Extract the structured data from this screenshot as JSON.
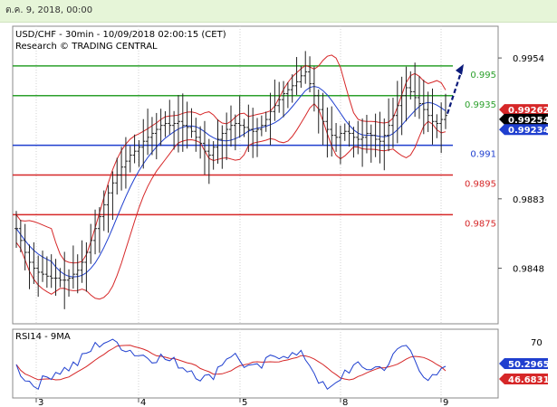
{
  "header": {
    "date_text": "ต.ค. 9, 2018, 00:00"
  },
  "chart_data": [
    {
      "type": "candlestick",
      "title": "USD/CHF - 30min - 10/09/2018 02:00:15 (CET)",
      "subtitle": "Research © TRADING CENTRAL",
      "ylim": [
        0.982,
        0.997
      ],
      "y_ticks": [
        "0.9954",
        "0.9883",
        "0.9848"
      ],
      "x_ticks": [
        "3",
        "4",
        "5",
        "8",
        "9"
      ],
      "horizontal_levels": [
        {
          "value": 0.995,
          "label": "0.995",
          "color": "#2ca02c"
        },
        {
          "value": 0.9935,
          "label": "0.9935",
          "color": "#2ca02c"
        },
        {
          "value": 0.991,
          "label": "0.991",
          "color": "#1f3fcf"
        },
        {
          "value": 0.9895,
          "label": "0.9895",
          "color": "#d62728"
        },
        {
          "value": 0.9875,
          "label": "0.9875",
          "color": "#d62728"
        }
      ],
      "price_tags": [
        {
          "value": 0.99262,
          "label": "0.99262",
          "color": "#d62728"
        },
        {
          "value": 0.99254,
          "label": "0.99254",
          "color": "#000000"
        },
        {
          "value": 0.99234,
          "label": "0.99234",
          "color": "#1f3fcf"
        }
      ],
      "close_series": [
        0.9868,
        0.9862,
        0.9856,
        0.9851,
        0.9848,
        0.9846,
        0.9845,
        0.9844,
        0.9843,
        0.9843,
        0.9842,
        0.9842,
        0.9843,
        0.9845,
        0.9847,
        0.9851,
        0.9856,
        0.9862,
        0.9868,
        0.9874,
        0.988,
        0.9886,
        0.9891,
        0.9895,
        0.9899,
        0.9902,
        0.9905,
        0.9907,
        0.9909,
        0.9912,
        0.9914,
        0.9916,
        0.9918,
        0.992,
        0.9921,
        0.992,
        0.9921,
        0.9922,
        0.992,
        0.9919,
        0.9917,
        0.9914,
        0.9911,
        0.9907,
        0.9905,
        0.9909,
        0.9913,
        0.9916,
        0.9918,
        0.992,
        0.9921,
        0.992,
        0.9919,
        0.9918,
        0.9917,
        0.9918,
        0.992,
        0.9923,
        0.9927,
        0.993,
        0.9933,
        0.9936,
        0.9938,
        0.994,
        0.9942,
        0.9945,
        0.9947,
        0.9941,
        0.9935,
        0.9928,
        0.9922,
        0.9918,
        0.9915,
        0.9914,
        0.9916,
        0.9917,
        0.9916,
        0.9914,
        0.9913,
        0.9914,
        0.9916,
        0.9915,
        0.9913,
        0.9912,
        0.9915,
        0.992,
        0.9925,
        0.993,
        0.9935,
        0.9939,
        0.9937,
        0.9934,
        0.9931,
        0.9928,
        0.9925,
        0.9922,
        0.9921,
        0.9923,
        0.9925
      ],
      "forecast_arrow_to": 0.995
    },
    {
      "type": "line",
      "title": "RSI14 - 9MA",
      "ylim": [
        25,
        80
      ],
      "y_ticks": [
        "70"
      ],
      "value_tags": [
        {
          "value": 50.2965,
          "label": "50.2965",
          "color": "#1f3fcf"
        },
        {
          "value": 46.6831,
          "label": "46.6831",
          "color": "#d62728"
        }
      ]
    }
  ]
}
